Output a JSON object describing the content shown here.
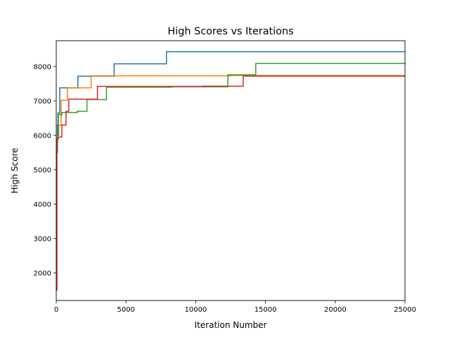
{
  "chart_data": {
    "type": "line",
    "step": "post",
    "title": "High Scores vs Iterations",
    "xlabel": "Iteration Number",
    "ylabel": "High Score",
    "xlim": [
      0,
      25000
    ],
    "ylim": [
      1200,
      8750
    ],
    "xticks": [
      0,
      5000,
      10000,
      15000,
      20000,
      25000
    ],
    "yticks": [
      2000,
      3000,
      4000,
      5000,
      6000,
      7000,
      8000
    ],
    "grid": false,
    "legend": "none",
    "series": [
      {
        "color": "#1f77b4",
        "points": [
          [
            0,
            1700
          ],
          [
            20,
            5600
          ],
          [
            80,
            6300
          ],
          [
            120,
            6650
          ],
          [
            250,
            7380
          ],
          [
            1550,
            7720
          ],
          [
            4150,
            8080
          ],
          [
            7900,
            8430
          ],
          [
            25000,
            8430
          ]
        ]
      },
      {
        "color": "#ff7f0e",
        "points": [
          [
            0,
            1700
          ],
          [
            30,
            5800
          ],
          [
            100,
            6000
          ],
          [
            180,
            6300
          ],
          [
            350,
            7020
          ],
          [
            800,
            7380
          ],
          [
            2500,
            7730
          ],
          [
            12500,
            7740
          ],
          [
            25000,
            7740
          ]
        ]
      },
      {
        "color": "#2ca02c",
        "points": [
          [
            0,
            1800
          ],
          [
            40,
            5500
          ],
          [
            90,
            6000
          ],
          [
            150,
            6600
          ],
          [
            400,
            6660
          ],
          [
            1500,
            6700
          ],
          [
            2200,
            7040
          ],
          [
            3600,
            7400
          ],
          [
            8300,
            7410
          ],
          [
            12300,
            7760
          ],
          [
            14300,
            8090
          ],
          [
            25000,
            8100
          ]
        ]
      },
      {
        "color": "#d62728",
        "points": [
          [
            0,
            1500
          ],
          [
            50,
            5900
          ],
          [
            150,
            5950
          ],
          [
            400,
            6300
          ],
          [
            700,
            6700
          ],
          [
            900,
            7050
          ],
          [
            2950,
            7420
          ],
          [
            10500,
            7430
          ],
          [
            13400,
            7720
          ],
          [
            25000,
            7720
          ]
        ]
      }
    ]
  }
}
